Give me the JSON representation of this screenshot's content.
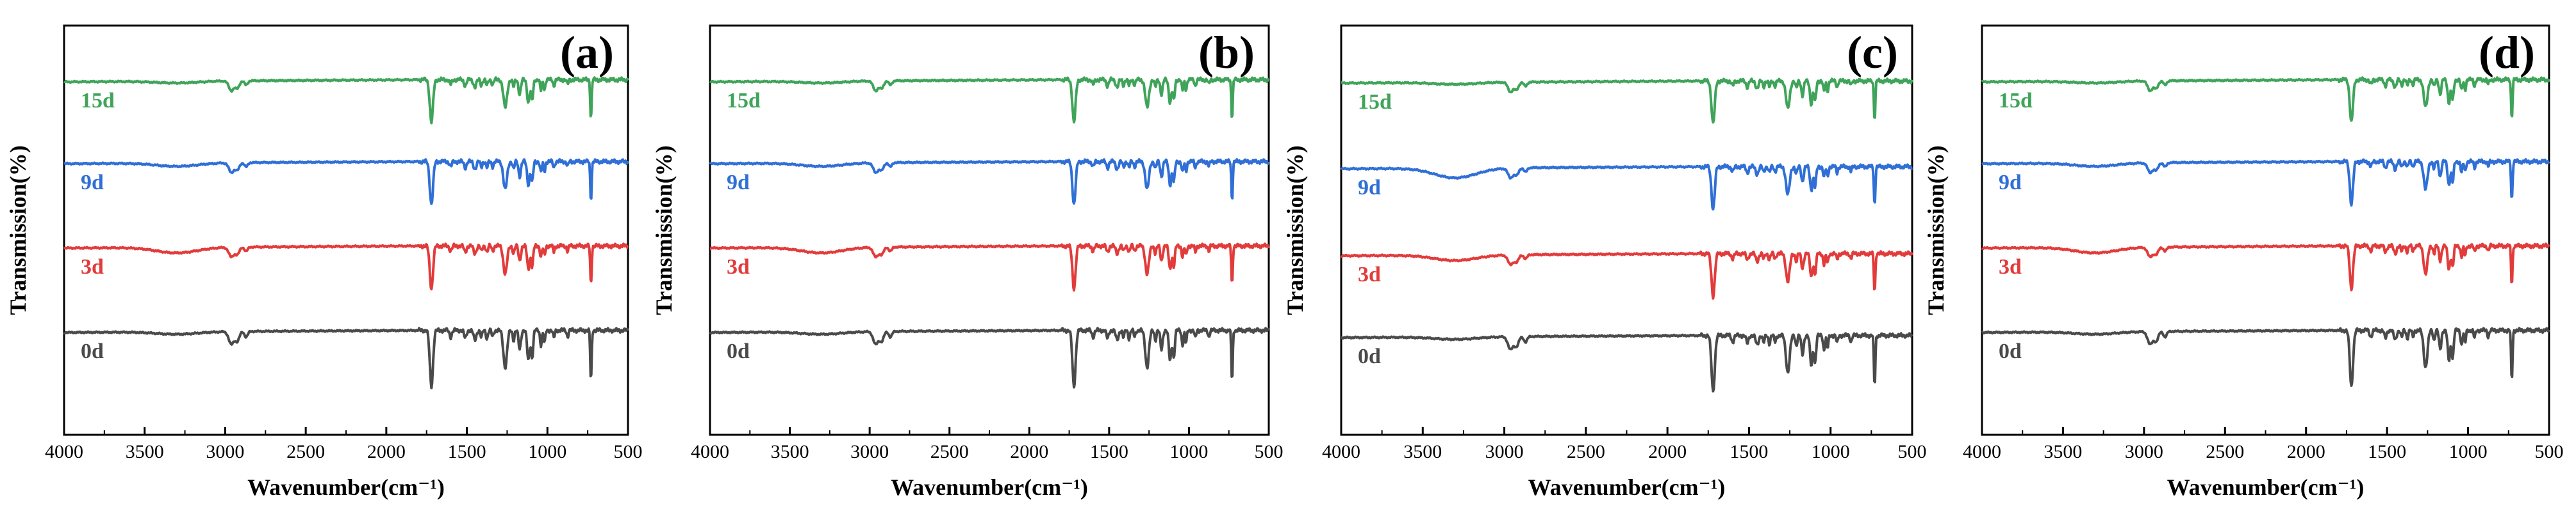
{
  "chart_data": [
    {
      "type": "line",
      "panel_label": "(a)",
      "xlabel": "Wavenumber(cm⁻¹)",
      "ylabel": "Transmission(%)",
      "xlim": [
        4000,
        500
      ],
      "xticks": [
        "4000",
        "3500",
        "3000",
        "2500",
        "2000",
        "1500",
        "1000",
        "500"
      ],
      "series": [
        {
          "name": "15d",
          "color": "#3fa45a"
        },
        {
          "name": "9d",
          "color": "#2f6fd6"
        },
        {
          "name": "3d",
          "color": "#e23b3b"
        },
        {
          "name": "0d",
          "color": "#4a4a4a"
        }
      ]
    },
    {
      "type": "line",
      "panel_label": "(b)",
      "xlabel": "Wavenumber(cm⁻¹)",
      "ylabel": "Transmission(%)",
      "xlim": [
        4000,
        500
      ],
      "xticks": [
        "4000",
        "3500",
        "3000",
        "2500",
        "2000",
        "1500",
        "1000",
        "500"
      ],
      "series": [
        {
          "name": "15d",
          "color": "#3fa45a"
        },
        {
          "name": "9d",
          "color": "#2f6fd6"
        },
        {
          "name": "3d",
          "color": "#e23b3b"
        },
        {
          "name": "0d",
          "color": "#4a4a4a"
        }
      ]
    },
    {
      "type": "line",
      "panel_label": "(c)",
      "xlabel": "Wavenumber(cm⁻¹)",
      "ylabel": "Transmission(%)",
      "xlim": [
        4000,
        500
      ],
      "xticks": [
        "4000",
        "3500",
        "3000",
        "2500",
        "2000",
        "1500",
        "1000",
        "500"
      ],
      "series": [
        {
          "name": "15d",
          "color": "#3fa45a"
        },
        {
          "name": "9d",
          "color": "#2f6fd6"
        },
        {
          "name": "3d",
          "color": "#e23b3b"
        },
        {
          "name": "0d",
          "color": "#4a4a4a"
        }
      ]
    },
    {
      "type": "line",
      "panel_label": "(d)",
      "xlabel": "Wavenumber(cm⁻¹)",
      "ylabel": "Transmission(%)",
      "xlim": [
        4000,
        500
      ],
      "xticks": [
        "4000",
        "3500",
        "3000",
        "2500",
        "2000",
        "1500",
        "1000",
        "500"
      ],
      "series": [
        {
          "name": "15d",
          "color": "#3fa45a"
        },
        {
          "name": "9d",
          "color": "#2f6fd6"
        },
        {
          "name": "3d",
          "color": "#e23b3b"
        },
        {
          "name": "0d",
          "color": "#4a4a4a"
        }
      ]
    }
  ]
}
